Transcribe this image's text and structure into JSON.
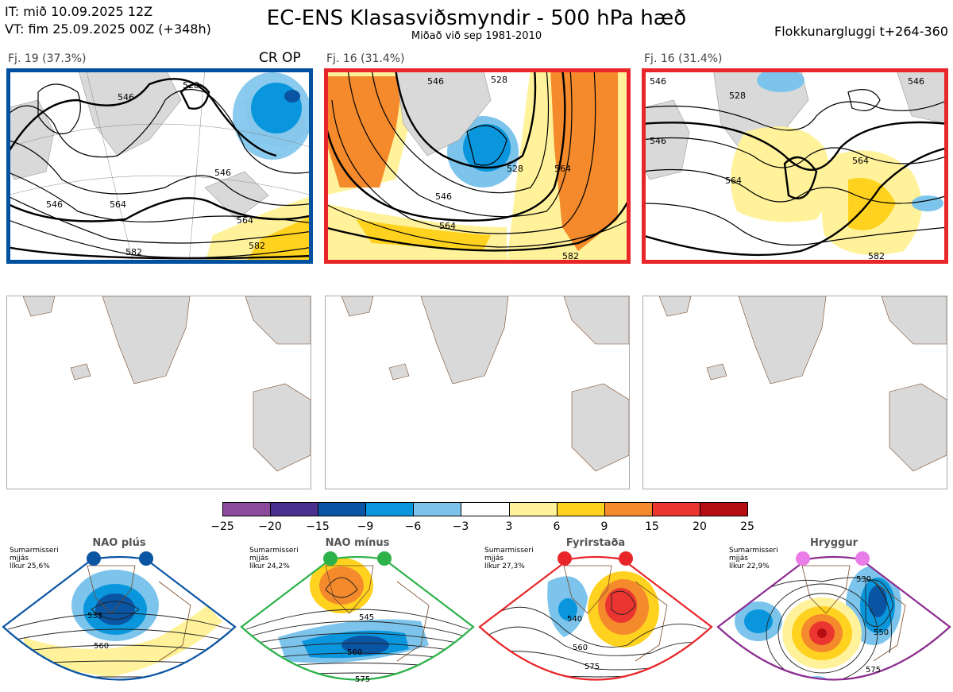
{
  "header": {
    "it_line": "IT: mið 10.09.2025 12Z",
    "vt_line": "VT: fim 25.09.2025 00Z  (+348h)",
    "title": "EC-ENS Klasasviðsmyndir - 500 hPa hæð",
    "subtitle": "Miðað við sep 1981-2010",
    "window": "Flokkunargluggi t+264-360"
  },
  "clusters": [
    {
      "label": "Fj. 19 (37.3%)",
      "tag": "CR OP",
      "frame_color": "#0050a0",
      "contour_labels": [
        "528",
        "546",
        "546",
        "546",
        "564",
        "564",
        "582",
        "582"
      ]
    },
    {
      "label": "Fj. 16 (31.4%)",
      "tag": "",
      "frame_color": "#e8262a",
      "contour_labels": [
        "546",
        "528",
        "528",
        "546",
        "564",
        "564",
        "582"
      ]
    },
    {
      "label": "Fj. 16 (31.4%)",
      "tag": "",
      "frame_color": "#e8262a",
      "contour_labels": [
        "546",
        "528",
        "546",
        "546",
        "564",
        "564",
        "582"
      ]
    }
  ],
  "colorbar": {
    "colors": [
      "#8c4a9a",
      "#4a2f8f",
      "#0a55a3",
      "#0a96dc",
      "#7cc4ec",
      "#ffffff",
      "#fff29a",
      "#ffd21f",
      "#f48a2c",
      "#ea3530",
      "#b50f14"
    ],
    "ticks": [
      "−25",
      "−20",
      "−15",
      "−9",
      "−6",
      "−3",
      "3",
      "6",
      "9",
      "15",
      "20",
      "25"
    ]
  },
  "regimes": [
    {
      "title": "NAO plús",
      "season": "Sumarmisseri",
      "mean": "mjjás",
      "prob": "líkur 25,6%",
      "color": "#0a55a3",
      "labels": [
        "535",
        "560"
      ]
    },
    {
      "title": "NAO mínus",
      "season": "Sumarmisseri",
      "mean": "mjjás",
      "prob": "líkur 24,2%",
      "color": "#2db24a",
      "labels": [
        "545",
        "560",
        "575"
      ]
    },
    {
      "title": "Fyrirstaða",
      "season": "Sumarmisseri",
      "mean": "mjjás",
      "prob": "líkur 27,3%",
      "color": "#e8262a",
      "labels": [
        "540",
        "560",
        "575"
      ]
    },
    {
      "title": "Hryggur",
      "season": "Sumarmisseri",
      "mean": "mjjás",
      "prob": "líkur 22,9%",
      "color": "#ea7ce8",
      "labels": [
        "530",
        "550",
        "575"
      ]
    }
  ]
}
